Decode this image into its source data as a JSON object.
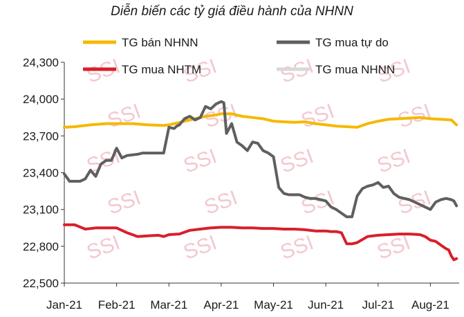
{
  "chart_data": {
    "type": "line",
    "title": "Diễn biến các tỷ giá điều hành của NHNN",
    "xlabel": "",
    "ylabel": "",
    "ylim": [
      22500,
      24300
    ],
    "yticks": [
      22500,
      22800,
      23100,
      23400,
      23700,
      24000,
      24300
    ],
    "ytick_labels": [
      "22,500",
      "22,800",
      "23,100",
      "23,400",
      "23,700",
      "24,000",
      "24,300"
    ],
    "x_range": [
      0,
      7.55
    ],
    "xticks": [
      0,
      1,
      2,
      3,
      4,
      5,
      6,
      7
    ],
    "xtick_labels": [
      "Jan-21",
      "Feb-21",
      "Mar-21",
      "Apr-21",
      "May-21",
      "Jun-21",
      "Jul-21",
      "Aug-21"
    ],
    "watermark": "SSI",
    "legend_position": "top",
    "series": [
      {
        "name": "TG bán NHNN",
        "color": "#f5b800",
        "x": [
          0,
          0.2,
          0.5,
          0.8,
          1.0,
          1.3,
          1.6,
          1.9,
          2.0,
          2.3,
          2.5,
          2.7,
          2.9,
          3.0,
          3.2,
          3.4,
          3.6,
          3.8,
          4.0,
          4.2,
          4.4,
          4.6,
          4.8,
          5.0,
          5.2,
          5.4,
          5.6,
          5.8,
          6.0,
          6.2,
          6.4,
          6.6,
          6.8,
          7.0,
          7.2,
          7.4,
          7.5
        ],
        "values": [
          23770,
          23775,
          23790,
          23800,
          23800,
          23800,
          23790,
          23785,
          23790,
          23820,
          23840,
          23860,
          23870,
          23880,
          23880,
          23860,
          23850,
          23840,
          23820,
          23815,
          23810,
          23815,
          23800,
          23790,
          23780,
          23775,
          23770,
          23800,
          23820,
          23835,
          23840,
          23845,
          23850,
          23840,
          23835,
          23830,
          23790
        ]
      },
      {
        "name": "TG mua tự do",
        "color": "#5f5f5f",
        "x": [
          0,
          0.1,
          0.3,
          0.4,
          0.5,
          0.6,
          0.7,
          0.8,
          0.9,
          1.0,
          1.1,
          1.2,
          1.4,
          1.5,
          1.6,
          1.7,
          1.9,
          2.0,
          2.1,
          2.15,
          2.2,
          2.3,
          2.4,
          2.5,
          2.6,
          2.7,
          2.8,
          2.9,
          3.0,
          3.05,
          3.1,
          3.2,
          3.3,
          3.4,
          3.5,
          3.6,
          3.7,
          3.8,
          3.9,
          4.0,
          4.1,
          4.2,
          4.3,
          4.4,
          4.5,
          4.6,
          4.7,
          4.8,
          4.9,
          5.0,
          5.1,
          5.2,
          5.3,
          5.4,
          5.5,
          5.6,
          5.7,
          5.8,
          5.9,
          6.0,
          6.1,
          6.2,
          6.3,
          6.4,
          6.5,
          6.6,
          6.7,
          6.8,
          6.9,
          7.0,
          7.1,
          7.2,
          7.3,
          7.4,
          7.45,
          7.5
        ],
        "values": [
          23390,
          23330,
          23330,
          23350,
          23420,
          23370,
          23470,
          23500,
          23500,
          23600,
          23520,
          23540,
          23550,
          23560,
          23560,
          23560,
          23560,
          23770,
          23760,
          23780,
          23790,
          23840,
          23860,
          23830,
          23850,
          23940,
          23920,
          23960,
          23980,
          23970,
          23720,
          23800,
          23650,
          23620,
          23580,
          23650,
          23640,
          23580,
          23560,
          23530,
          23280,
          23230,
          23220,
          23220,
          23220,
          23200,
          23190,
          23190,
          23180,
          23170,
          23120,
          23100,
          23070,
          23040,
          23040,
          23210,
          23270,
          23290,
          23300,
          23320,
          23280,
          23290,
          23230,
          23200,
          23190,
          23180,
          23160,
          23140,
          23120,
          23100,
          23160,
          23180,
          23190,
          23180,
          23170,
          23130
        ]
      },
      {
        "name": "TG mua NHTM",
        "color": "#d81f2a",
        "x": [
          0,
          0.2,
          0.4,
          0.6,
          0.8,
          1.0,
          1.1,
          1.2,
          1.4,
          1.6,
          1.8,
          1.9,
          2.0,
          2.2,
          2.4,
          2.6,
          2.8,
          3.0,
          3.2,
          3.4,
          3.6,
          3.8,
          4.0,
          4.2,
          4.4,
          4.6,
          4.8,
          5.0,
          5.1,
          5.2,
          5.3,
          5.4,
          5.5,
          5.6,
          5.8,
          6.0,
          6.2,
          6.4,
          6.6,
          6.8,
          6.9,
          7.0,
          7.1,
          7.2,
          7.3,
          7.35,
          7.4,
          7.45,
          7.5
        ],
        "values": [
          22975,
          22975,
          22940,
          22950,
          22950,
          22950,
          22930,
          22910,
          22880,
          22885,
          22890,
          22880,
          22895,
          22900,
          22930,
          22940,
          22950,
          22955,
          22955,
          22950,
          22950,
          22945,
          22945,
          22940,
          22940,
          22935,
          22925,
          22925,
          22920,
          22920,
          22910,
          22820,
          22820,
          22830,
          22880,
          22890,
          22895,
          22900,
          22900,
          22895,
          22880,
          22850,
          22840,
          22810,
          22780,
          22770,
          22720,
          22690,
          22700
        ]
      },
      {
        "name": "TG mua NHNN",
        "color": "#d9d9d9",
        "x": [],
        "values": []
      }
    ]
  }
}
